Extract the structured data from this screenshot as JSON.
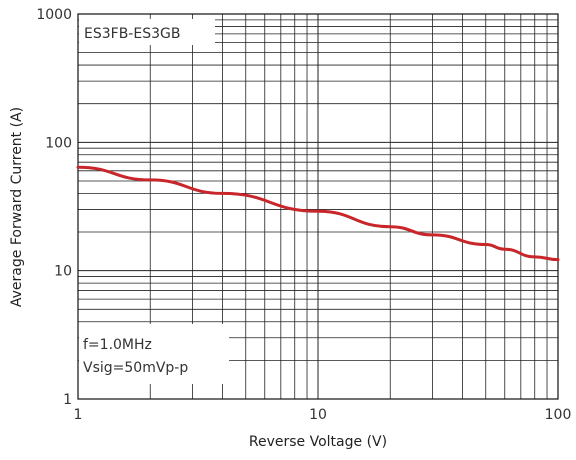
{
  "chart_data": {
    "type": "line",
    "x_scale": "log",
    "y_scale": "log",
    "xlim": [
      1,
      100
    ],
    "ylim": [
      1,
      1000
    ],
    "xlabel": "Reverse Voltage (V)",
    "ylabel": "Average Forward Current (A)",
    "x_ticks": [
      "1",
      "10",
      "100"
    ],
    "y_ticks": [
      "1",
      "10",
      "100",
      "1000"
    ],
    "grid": true,
    "series": [
      {
        "color": "#c8262a",
        "x": [
          1,
          2,
          4,
          10,
          20,
          30,
          50,
          60,
          80,
          100
        ],
        "y": [
          64,
          51,
          40,
          29,
          22,
          19,
          16,
          14.7,
          12.8,
          12.2
        ]
      }
    ],
    "annotations": {
      "part_label": "ES3FB-ES3GB",
      "condition_1": "f=1.0MHz",
      "condition_2": "Vsig=50mVp-p"
    }
  }
}
